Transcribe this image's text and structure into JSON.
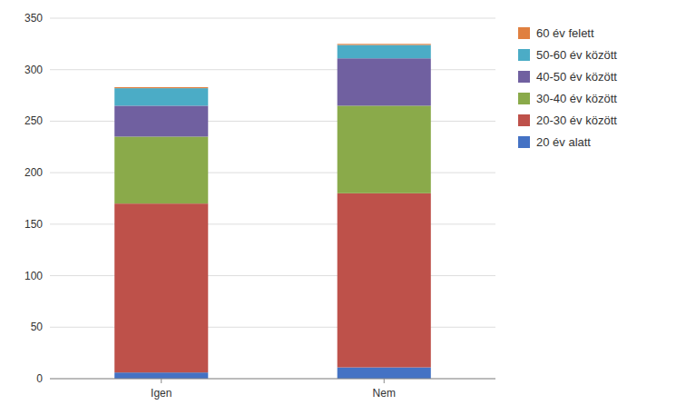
{
  "chart_data": {
    "type": "bar",
    "stacked": true,
    "categories": [
      "Igen",
      "Nem"
    ],
    "series": [
      {
        "name": "20 év alatt",
        "color": "#4472C4",
        "values": [
          6,
          11
        ]
      },
      {
        "name": "20-30 év között",
        "color": "#BE514A",
        "values": [
          164,
          169
        ]
      },
      {
        "name": "30-40 év között",
        "color": "#8AAA4A",
        "values": [
          65,
          85
        ]
      },
      {
        "name": "40-50 év között",
        "color": "#7060A0",
        "values": [
          30,
          46
        ]
      },
      {
        "name": "50-60 év között",
        "color": "#4BACC6",
        "values": [
          17,
          13
        ]
      },
      {
        "name": "60 év felett",
        "color": "#E08040",
        "values": [
          1,
          1
        ]
      }
    ],
    "ylim": [
      0,
      350
    ],
    "yticks": [
      0,
      50,
      100,
      150,
      200,
      250,
      300,
      350
    ],
    "grid": true,
    "legend": "right"
  }
}
